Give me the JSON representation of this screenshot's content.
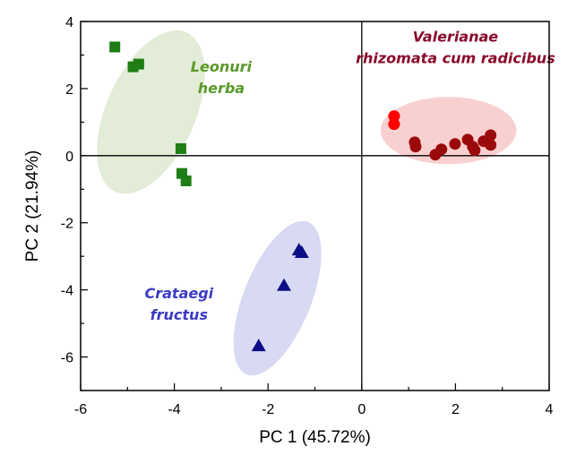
{
  "chart_data": {
    "type": "scatter",
    "title": "",
    "xlabel": "PC 1 (45.72%)",
    "ylabel": "PC 2 (21.94%)",
    "xlim": [
      -6,
      4
    ],
    "ylim": [
      -7,
      4
    ],
    "xticks": [
      -6,
      -4,
      -2,
      0,
      2,
      4
    ],
    "yticks": [
      -6,
      -4,
      -2,
      0,
      2,
      4
    ],
    "xtick_labels": [
      "-6",
      "-4",
      "-2",
      "0",
      "2",
      "4"
    ],
    "ytick_labels": [
      "-6",
      "-4",
      "-2",
      "0",
      "2",
      "4"
    ],
    "grid": false,
    "zero_lines": true,
    "series": [
      {
        "name": "Leonuri herba",
        "marker": "square",
        "color": "#1e7d14",
        "ellipse_color": "#e2ecd6",
        "label_color": "#5a9a2a",
        "label_lines": [
          "Leonuri",
          "herba"
        ],
        "label_anchor": [
          -3.0,
          2.5
        ],
        "ellipse": {
          "cx": -4.5,
          "cy": 1.3,
          "rx": 2.6,
          "ry": 0.95,
          "angle_deg": -66
        },
        "points": [
          [
            -5.27,
            3.24
          ],
          [
            -4.88,
            2.65
          ],
          [
            -4.76,
            2.73
          ],
          [
            -3.86,
            0.21
          ],
          [
            -3.84,
            -0.53
          ],
          [
            -3.75,
            -0.75
          ]
        ]
      },
      {
        "name": "Crataegi fructus",
        "marker": "triangle",
        "color": "#0d0d85",
        "ellipse_color": "#d8daf4",
        "label_color": "#3b3bc4",
        "label_lines": [
          "Crataegi",
          "fructus"
        ],
        "label_anchor": [
          -3.9,
          -4.25
        ],
        "ellipse": {
          "cx": -1.8,
          "cy": -4.25,
          "rx": 2.45,
          "ry": 0.72,
          "angle_deg": -68
        },
        "points": [
          [
            -1.34,
            -2.81
          ],
          [
            -1.28,
            -2.89
          ],
          [
            -1.66,
            -3.87
          ],
          [
            -2.2,
            -5.67
          ]
        ]
      },
      {
        "name": "Valerianae rhizomata cum radicibus",
        "marker": "circle",
        "color": "#9b0a0a",
        "ellipse_color": "#f9d0d0",
        "label_color": "#8a0a2a",
        "label_lines": [
          "Valerianae",
          "rhizomata cum radicibus"
        ],
        "label_anchor": [
          2.0,
          3.4
        ],
        "ellipse": {
          "cx": 1.85,
          "cy": 0.75,
          "rx": 1.45,
          "ry": 1.0,
          "angle_deg": 0
        },
        "points": [
          [
            1.13,
            0.4
          ],
          [
            1.15,
            0.27
          ],
          [
            1.57,
            0.03
          ],
          [
            1.7,
            0.19
          ],
          [
            1.99,
            0.35
          ],
          [
            2.26,
            0.48
          ],
          [
            2.37,
            0.27
          ],
          [
            2.41,
            0.16
          ],
          [
            2.6,
            0.43
          ],
          [
            2.75,
            0.61
          ],
          [
            2.75,
            0.32
          ]
        ],
        "highlight_points": {
          "color": "#ff0000",
          "points": [
            [
              0.69,
              1.18
            ],
            [
              0.69,
              0.94
            ]
          ]
        }
      }
    ]
  }
}
